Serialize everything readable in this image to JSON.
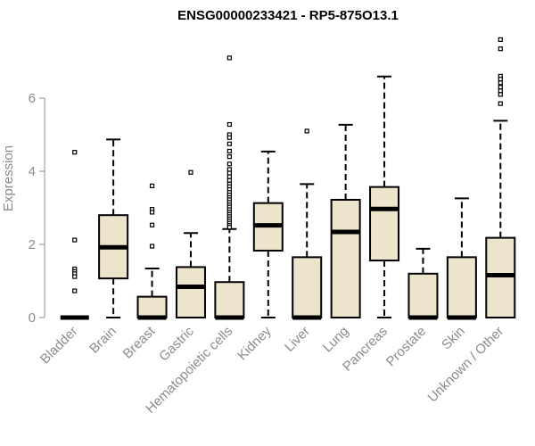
{
  "chart_data": {
    "type": "boxplot",
    "title": "ENSG00000233421 - RP5-875O13.1",
    "xlabel": "",
    "ylabel": "Expression",
    "ylim": [
      0,
      7.9
    ],
    "yticks": [
      0,
      2,
      4,
      6
    ],
    "grid": false,
    "box_fill": "#ede5cb",
    "box_stroke": "#000000",
    "axis_color": "#8c8c8c",
    "categories": [
      "Bladder",
      "Brain",
      "Breast",
      "Gastric",
      "Hematopoietic cells",
      "Kidney",
      "Liver",
      "Lung",
      "Pancreas",
      "Prostate",
      "Skin",
      "Unknown / Other"
    ],
    "boxes": [
      {
        "q1": 0,
        "median": 0,
        "q3": 0,
        "whisker_low": 0,
        "whisker_high": 0,
        "outliers": [
          4.52,
          2.12,
          1.33,
          1.26,
          1.2,
          1.12,
          0.73
        ]
      },
      {
        "q1": 1.07,
        "median": 1.92,
        "q3": 2.8,
        "whisker_low": 0,
        "whisker_high": 4.87,
        "outliers": []
      },
      {
        "q1": 0,
        "median": 0,
        "q3": 0.57,
        "whisker_low": 0,
        "whisker_high": 1.34,
        "outliers": [
          3.6,
          2.96,
          2.88,
          2.53,
          1.95
        ]
      },
      {
        "q1": 0,
        "median": 0.84,
        "q3": 1.38,
        "whisker_low": 0,
        "whisker_high": 2.31,
        "outliers": [
          3.97
        ]
      },
      {
        "q1": 0,
        "median": 0,
        "q3": 0.97,
        "whisker_low": 0,
        "whisker_high": 2.42,
        "outliers": [
          7.1,
          5.28,
          5.0,
          4.92,
          4.75,
          4.55,
          4.4,
          4.2,
          4.05,
          3.95,
          3.85,
          3.75,
          3.65,
          3.58,
          3.5,
          3.42,
          3.35,
          3.28,
          3.22,
          3.15,
          3.08,
          3.02,
          2.95,
          2.88,
          2.82,
          2.76,
          2.7,
          2.64,
          2.58,
          2.52,
          2.47
        ]
      },
      {
        "q1": 1.83,
        "median": 2.52,
        "q3": 3.13,
        "whisker_low": 0,
        "whisker_high": 4.54,
        "outliers": []
      },
      {
        "q1": 0,
        "median": 0,
        "q3": 1.65,
        "whisker_low": 0,
        "whisker_high": 3.65,
        "outliers": [
          5.1
        ]
      },
      {
        "q1": 0,
        "median": 2.34,
        "q3": 3.22,
        "whisker_low": 0,
        "whisker_high": 5.27,
        "outliers": []
      },
      {
        "q1": 1.56,
        "median": 2.97,
        "q3": 3.57,
        "whisker_low": 0,
        "whisker_high": 6.59,
        "outliers": []
      },
      {
        "q1": 0,
        "median": 0,
        "q3": 1.2,
        "whisker_low": 0,
        "whisker_high": 1.88,
        "outliers": []
      },
      {
        "q1": 0,
        "median": 0,
        "q3": 1.65,
        "whisker_low": 0,
        "whisker_high": 3.26,
        "outliers": []
      },
      {
        "q1": 0,
        "median": 1.16,
        "q3": 2.18,
        "whisker_low": 0,
        "whisker_high": 5.38,
        "outliers": [
          7.6,
          7.35,
          6.6,
          6.52,
          6.42,
          6.3,
          6.2,
          6.1,
          5.85
        ]
      }
    ]
  }
}
